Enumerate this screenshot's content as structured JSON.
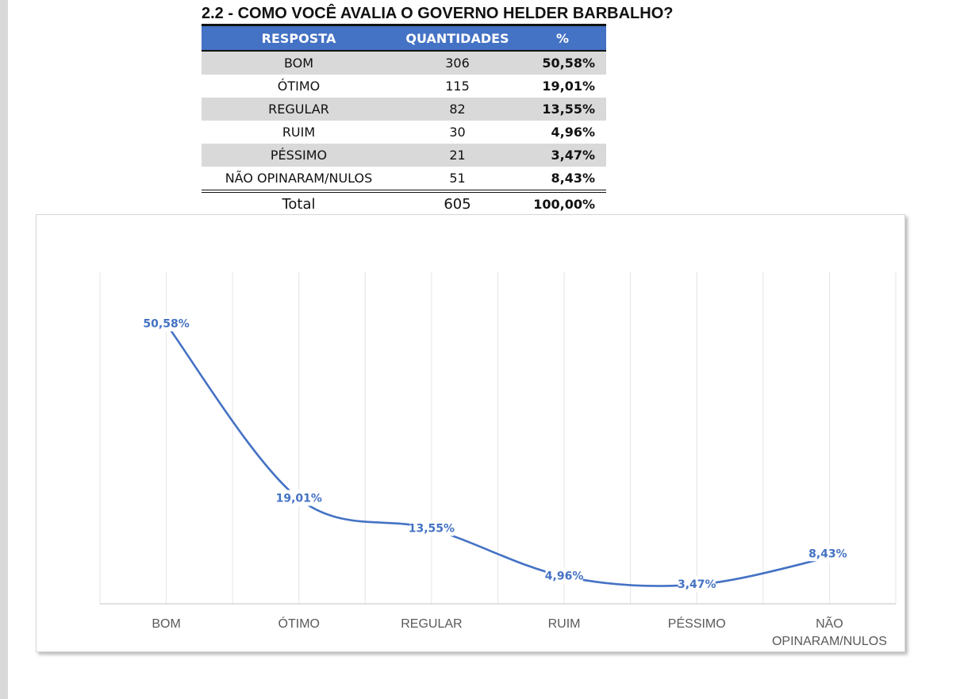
{
  "title": "2.2 - COMO VOCÊ AVALIA O GOVERNO HELDER BARBALHO?",
  "table": {
    "headers": [
      "RESPOSTA",
      "QUANTIDADES",
      "%"
    ],
    "rows": [
      {
        "resposta": "BOM",
        "quantidade": "306",
        "pct": "50,58%"
      },
      {
        "resposta": "ÓTIMO",
        "quantidade": "115",
        "pct": "19,01%"
      },
      {
        "resposta": "REGULAR",
        "quantidade": "82",
        "pct": "13,55%"
      },
      {
        "resposta": "RUIM",
        "quantidade": "30",
        "pct": "4,96%"
      },
      {
        "resposta": "PÉSSIMO",
        "quantidade": "21",
        "pct": "3,47%"
      },
      {
        "resposta": "NÃO OPINARAM/NULOS",
        "quantidade": "51",
        "pct": "8,43%"
      }
    ],
    "total": {
      "label": "Total",
      "quantidade": "605",
      "pct": "100,00%"
    }
  },
  "chart_data": {
    "type": "line",
    "smooth": true,
    "categories": [
      "BOM",
      "ÓTIMO",
      "REGULAR",
      "RUIM",
      "PÉSSIMO",
      "NÃO OPINARAM/NULOS"
    ],
    "category_lines": [
      [
        "BOM"
      ],
      [
        "ÓTIMO"
      ],
      [
        "REGULAR"
      ],
      [
        "RUIM"
      ],
      [
        "PÉSSIMO"
      ],
      [
        "NÃO",
        "OPINARAM/NULOS"
      ]
    ],
    "series": [
      {
        "values": [
          50.58,
          19.01,
          13.55,
          4.96,
          3.47,
          8.43
        ],
        "data_labels": [
          "50,58%",
          "19,01%",
          "13,55%",
          "4,96%",
          "3,47%",
          "8,43%"
        ]
      }
    ],
    "title": "",
    "xlabel": "",
    "ylabel": "",
    "ylim": [
      0,
      60
    ],
    "grid": "vertical",
    "legend": "none",
    "line_color": "#4472c4"
  }
}
